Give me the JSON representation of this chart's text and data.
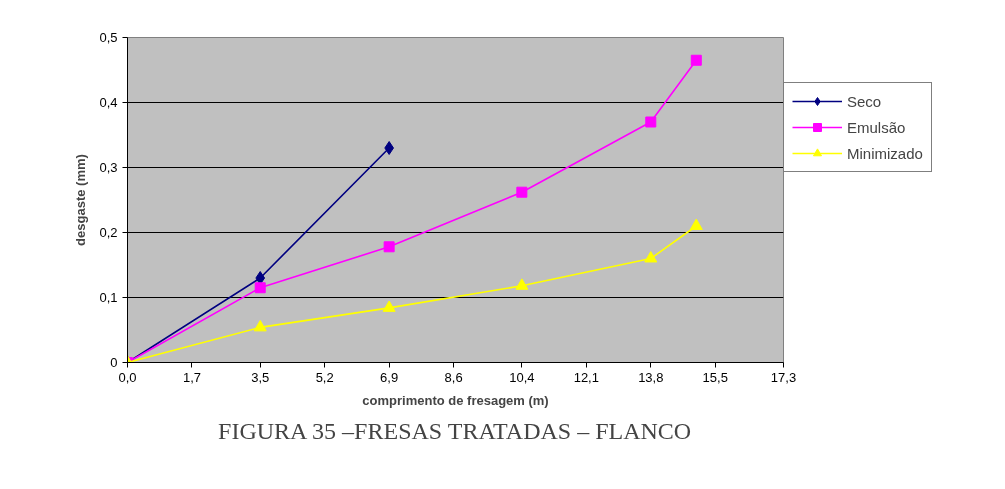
{
  "chart_data": {
    "type": "line",
    "xlabel": "comprimento de fresagem (m)",
    "ylabel": "desgaste (mm)",
    "annotations": [
      "FIGURA 35 –FRESAS TRATADAS – FLANCO"
    ],
    "series": [
      {
        "name": "Seco",
        "color": "#000080",
        "marker": "diamond",
        "x": [
          0,
          3.5,
          6.9
        ],
        "values": [
          0,
          0.13,
          0.33
        ]
      },
      {
        "name": "Emulsão",
        "color": "#ff00ff",
        "marker": "square",
        "x": [
          0,
          3.5,
          6.9,
          10.4,
          13.8,
          15.0
        ],
        "values": [
          0,
          0.115,
          0.178,
          0.262,
          0.37,
          0.465
        ]
      },
      {
        "name": "Minimizado",
        "color": "#ffff00",
        "marker": "triangle",
        "x": [
          0,
          3.5,
          6.9,
          10.4,
          13.8,
          15.0
        ],
        "values": [
          0,
          0.054,
          0.084,
          0.118,
          0.16,
          0.21
        ]
      }
    ],
    "xlim": [
      0,
      17.3
    ],
    "ylim": [
      0,
      0.5
    ],
    "xticks": [
      {
        "value": 0,
        "label": "0,0"
      },
      {
        "value": 1.7,
        "label": "1,7"
      },
      {
        "value": 3.5,
        "label": "3,5"
      },
      {
        "value": 5.2,
        "label": "5,2"
      },
      {
        "value": 6.9,
        "label": "6,9"
      },
      {
        "value": 8.6,
        "label": "8,6"
      },
      {
        "value": 10.4,
        "label": "10,4"
      },
      {
        "value": 12.1,
        "label": "12,1"
      },
      {
        "value": 13.8,
        "label": "13,8"
      },
      {
        "value": 15.5,
        "label": "15,5"
      },
      {
        "value": 17.3,
        "label": "17,3"
      }
    ],
    "yticks": [
      0,
      {
        "value": 0.1,
        "label": "0,1"
      },
      {
        "value": 0.2,
        "label": "0,2"
      },
      {
        "value": 0.3,
        "label": "0,3"
      },
      {
        "value": 0.4,
        "label": "0,4"
      },
      {
        "value": 0.5,
        "label": "0,5"
      }
    ],
    "grid": "y",
    "legend": "right",
    "line_style": "solid"
  }
}
